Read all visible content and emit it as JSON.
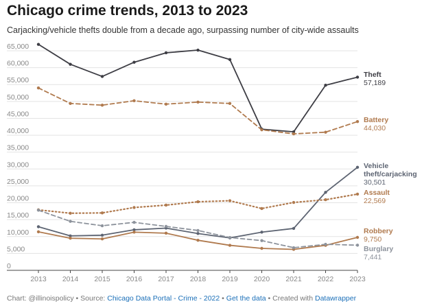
{
  "title": "Chicago crime trends, 2013 to 2023",
  "subtitle": "Carjacking/vehicle thefts double from a decade ago, surpassing number of city-wide assaults",
  "footer": {
    "credit": "Chart: @illinoispolicy",
    "source_prefix": "Source:",
    "source_link": "Chicago Data Portal - Crime - 2022",
    "data_link": "Get the data",
    "created_prefix": "Created with",
    "tool_link": "Datawrapper",
    "separator": "•"
  },
  "chart_data": {
    "type": "line",
    "x": [
      2013,
      2014,
      2015,
      2016,
      2017,
      2018,
      2019,
      2020,
      2021,
      2022,
      2023
    ],
    "xticks": [
      "2013",
      "2014",
      "2015",
      "2016",
      "2017",
      "2018",
      "2019",
      "2020",
      "2021",
      "2022",
      "2023"
    ],
    "ylim": [
      0,
      65000
    ],
    "yticks": [
      0,
      5000,
      10000,
      15000,
      20000,
      25000,
      30000,
      35000,
      40000,
      45000,
      50000,
      55000,
      60000,
      65000
    ],
    "ytick_labels": [
      "0",
      "5,000",
      "10,000",
      "15,000",
      "20,000",
      "25,000",
      "30,000",
      "35,000",
      "40,000",
      "45,000",
      "50,000",
      "55,000",
      "60,000",
      "65,000"
    ],
    "grid": true,
    "series": [
      {
        "name": "Theft",
        "end_label": "57,189",
        "color": "#3d3d44",
        "style": "solid",
        "markers": true,
        "values": [
          66900,
          61000,
          57400,
          61600,
          64400,
          65200,
          62400,
          41800,
          41000,
          54800,
          57189
        ]
      },
      {
        "name": "Battery",
        "end_label": "44,030",
        "color": "#b07a4e",
        "style": "dashed",
        "markers": true,
        "values": [
          54000,
          49400,
          48900,
          50200,
          49200,
          49800,
          49400,
          41600,
          40400,
          40900,
          44030
        ]
      },
      {
        "name": "Vehicle theft/carjacking",
        "name_lines": [
          "Vehicle",
          "theft/carjacking"
        ],
        "end_label": "30,501",
        "color": "#5d6472",
        "style": "solid",
        "markers": true,
        "values": [
          12900,
          10200,
          10400,
          12000,
          12500,
          10900,
          9600,
          11300,
          12400,
          23100,
          30501
        ]
      },
      {
        "name": "Assault",
        "end_label": "22,569",
        "color": "#b07a4e",
        "style": "dotted",
        "markers": true,
        "values": [
          17900,
          16900,
          17000,
          18600,
          19300,
          20300,
          20600,
          18300,
          20100,
          20900,
          22569
        ]
      },
      {
        "name": "Robbery",
        "end_label": "9,750",
        "color": "#b07a4e",
        "style": "solid",
        "markers": true,
        "values": [
          11400,
          9500,
          9300,
          11300,
          11000,
          8900,
          7400,
          6500,
          6200,
          7400,
          9750
        ]
      },
      {
        "name": "Burglary",
        "end_label": "7,441",
        "color": "#8d939c",
        "style": "dashed",
        "markers": true,
        "values": [
          17800,
          14500,
          13200,
          14200,
          13000,
          11800,
          9700,
          8800,
          6700,
          7700,
          7441
        ]
      }
    ]
  }
}
